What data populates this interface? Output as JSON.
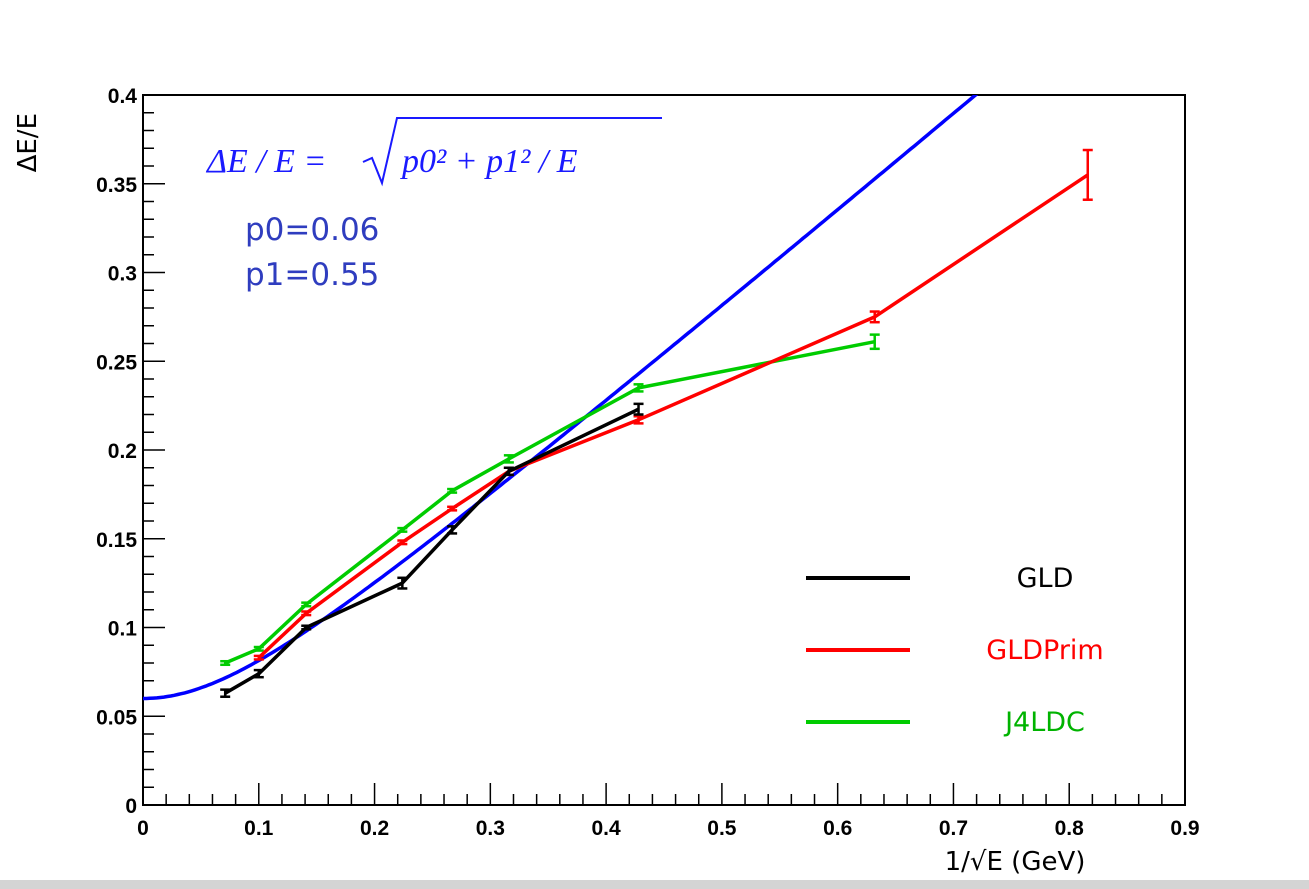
{
  "chart_data": {
    "type": "line",
    "xlabel": "1/√E (GeV)",
    "ylabel": "ΔE/E",
    "xlim": [
      0,
      0.9
    ],
    "ylim": [
      0,
      0.4
    ],
    "xticks": [
      "0",
      "0.1",
      "0.2",
      "0.3",
      "0.4",
      "0.5",
      "0.6",
      "0.7",
      "0.8",
      "0.9"
    ],
    "yticks": [
      "0",
      "0.05",
      "0.1",
      "0.15",
      "0.2",
      "0.25",
      "0.3",
      "0.35",
      "0.4"
    ],
    "grid": false,
    "legend_position": "bottom-right",
    "series": [
      {
        "name": "GLD",
        "color": "#000000",
        "x": [
          0.071,
          0.1,
          0.141,
          0.224,
          0.267,
          0.316,
          0.428
        ],
        "y": [
          0.063,
          0.074,
          0.1,
          0.125,
          0.155,
          0.188,
          0.223
        ],
        "yerr": [
          0.002,
          0.002,
          0.001,
          0.003,
          0.002,
          0.002,
          0.003
        ]
      },
      {
        "name": "GLDPrim",
        "color": "#ff0000",
        "x": [
          0.1,
          0.141,
          0.224,
          0.267,
          0.316,
          0.428,
          0.632,
          0.816
        ],
        "y": [
          0.083,
          0.108,
          0.148,
          0.167,
          0.188,
          0.217,
          0.275,
          0.355
        ],
        "yerr": [
          0.001,
          0.001,
          0.001,
          0.001,
          0.002,
          0.002,
          0.003,
          0.014
        ]
      },
      {
        "name": "J4LDC",
        "color": "#00cc00",
        "x": [
          0.071,
          0.1,
          0.141,
          0.224,
          0.267,
          0.316,
          0.428,
          0.632
        ],
        "y": [
          0.08,
          0.088,
          0.113,
          0.155,
          0.177,
          0.195,
          0.235,
          0.261
        ],
        "yerr": [
          0.001,
          0.001,
          0.001,
          0.001,
          0.001,
          0.002,
          0.002,
          0.004
        ]
      }
    ],
    "fit": {
      "color": "#0000ff",
      "p0": 0.06,
      "p1": 0.55,
      "formula": "ΔE / E = √(p0² + p1² / E)"
    },
    "annotations": {
      "p0": "p0=0.06",
      "p1": "p1=0.55"
    }
  }
}
